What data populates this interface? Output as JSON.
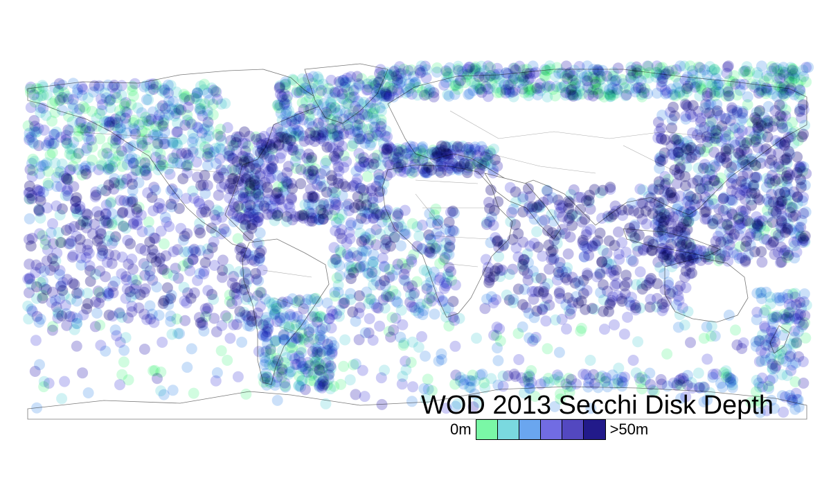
{
  "title": "WOD 2013 Secchi Disk Depth",
  "legend": {
    "min_label": "0m",
    "max_label": ">50m",
    "classes": [
      {
        "color": "#7af7a6"
      },
      {
        "color": "#7ad9df"
      },
      {
        "color": "#6aa6ef"
      },
      {
        "color": "#716ce3"
      },
      {
        "color": "#5348c0"
      },
      {
        "color": "#221a8a"
      }
    ]
  },
  "map": {
    "projection": "equirectangular",
    "extent": "global",
    "point_style": "semi-transparent circles colored by depth class"
  }
}
